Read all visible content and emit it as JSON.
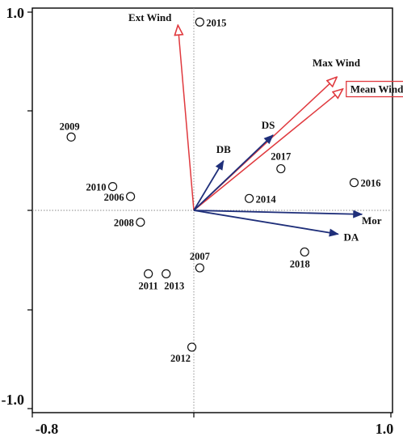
{
  "chart_data": {
    "type": "scatter",
    "subtype": "ordination-biplot",
    "title": "",
    "xlabel": "",
    "ylabel": "",
    "xlim": [
      -0.8,
      1.0
    ],
    "ylim": [
      -1.0,
      1.0
    ],
    "x_tick_labels": [
      "-0.8",
      "1.0"
    ],
    "y_tick_labels": [
      "1.0",
      "-1.0"
    ],
    "grid": false,
    "reference_lines": {
      "x": 0.0,
      "y": 0.0,
      "style": "dotted"
    },
    "colors": {
      "environmental_vector": "#e0393e",
      "response_vector": "#1f2f7a",
      "points": "#111111",
      "highlight_box": "#e0393e"
    },
    "points": [
      {
        "label": "2015",
        "x": 0.03,
        "y": 0.95
      },
      {
        "label": "2009",
        "x": -0.62,
        "y": 0.37
      },
      {
        "label": "2010",
        "x": -0.41,
        "y": 0.12
      },
      {
        "label": "2006",
        "x": -0.32,
        "y": 0.07
      },
      {
        "label": "2008",
        "x": -0.27,
        "y": -0.06
      },
      {
        "label": "2017",
        "x": 0.44,
        "y": 0.21
      },
      {
        "label": "2014",
        "x": 0.28,
        "y": 0.06
      },
      {
        "label": "2016",
        "x": 0.81,
        "y": 0.14
      },
      {
        "label": "2018",
        "x": 0.56,
        "y": -0.21
      },
      {
        "label": "2007",
        "x": 0.03,
        "y": -0.29
      },
      {
        "label": "2011",
        "x": -0.23,
        "y": -0.32
      },
      {
        "label": "2013",
        "x": -0.14,
        "y": -0.32
      },
      {
        "label": "2012",
        "x": -0.01,
        "y": -0.69
      }
    ],
    "vectors": [
      {
        "name": "Ext Wind",
        "group": "environmental",
        "x": -0.08,
        "y": 0.93
      },
      {
        "name": "Max Wind",
        "group": "environmental",
        "x": 0.72,
        "y": 0.67
      },
      {
        "name": "Mean Wind",
        "group": "environmental",
        "x": 0.75,
        "y": 0.61,
        "boxed": true
      },
      {
        "name": "DS",
        "group": "response",
        "x": 0.4,
        "y": 0.38
      },
      {
        "name": "DB",
        "group": "response",
        "x": 0.15,
        "y": 0.25
      },
      {
        "name": "Mor",
        "group": "response",
        "x": 0.85,
        "y": -0.02
      },
      {
        "name": "DA",
        "group": "response",
        "x": 0.73,
        "y": -0.12
      }
    ]
  }
}
